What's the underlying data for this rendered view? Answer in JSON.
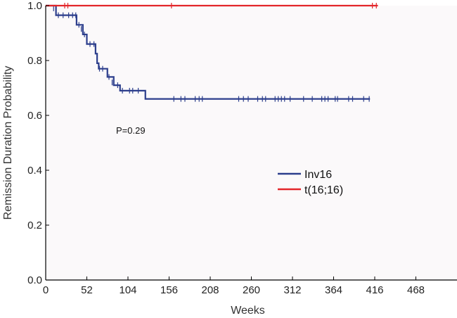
{
  "chart_data": {
    "type": "line",
    "subtype": "kaplan-meier",
    "xlabel": "Weeks",
    "ylabel": "Remission Duration Probability",
    "xlim": [
      0,
      520
    ],
    "ylim": [
      0,
      1.0
    ],
    "xticks": [
      0,
      52,
      104,
      156,
      208,
      260,
      312,
      364,
      416,
      468
    ],
    "yticks": [
      0.0,
      0.2,
      0.4,
      0.6,
      0.8,
      1.0
    ],
    "xtick_labels": [
      "0",
      "52",
      "104",
      "156",
      "208",
      "260",
      "312",
      "364",
      "416",
      "468"
    ],
    "ytick_labels": [
      "0.0",
      "0.2",
      "0.4",
      "0.6",
      "0.8",
      "1.0"
    ],
    "grid": false,
    "background": "#fbf9fa",
    "legend_position": "right-middle",
    "annotation": "P=0.29",
    "series": [
      {
        "name": "Inv16",
        "color": "#2c3e8c",
        "steps": [
          [
            0,
            1.0
          ],
          [
            13,
            0.965
          ],
          [
            39,
            0.93
          ],
          [
            47,
            0.895
          ],
          [
            52,
            0.86
          ],
          [
            63,
            0.825
          ],
          [
            65,
            0.79
          ],
          [
            67,
            0.77
          ],
          [
            78,
            0.74
          ],
          [
            86,
            0.71
          ],
          [
            94,
            0.69
          ],
          [
            126,
            0.66
          ],
          [
            410,
            0.66
          ]
        ],
        "censored": [
          [
            10,
            0.99
          ],
          [
            16,
            0.965
          ],
          [
            22,
            0.965
          ],
          [
            29,
            0.965
          ],
          [
            34,
            0.965
          ],
          [
            38,
            0.965
          ],
          [
            42,
            0.93
          ],
          [
            45,
            0.915
          ],
          [
            49,
            0.895
          ],
          [
            56,
            0.86
          ],
          [
            61,
            0.86
          ],
          [
            68,
            0.77
          ],
          [
            72,
            0.77
          ],
          [
            80,
            0.74
          ],
          [
            84,
            0.72
          ],
          [
            91,
            0.71
          ],
          [
            97,
            0.69
          ],
          [
            106,
            0.69
          ],
          [
            110,
            0.69
          ],
          [
            117,
            0.69
          ],
          [
            162,
            0.66
          ],
          [
            171,
            0.66
          ],
          [
            176,
            0.66
          ],
          [
            189,
            0.66
          ],
          [
            194,
            0.66
          ],
          [
            198,
            0.66
          ],
          [
            244,
            0.66
          ],
          [
            250,
            0.66
          ],
          [
            256,
            0.66
          ],
          [
            268,
            0.66
          ],
          [
            274,
            0.66
          ],
          [
            278,
            0.66
          ],
          [
            290,
            0.66
          ],
          [
            294,
            0.66
          ],
          [
            298,
            0.66
          ],
          [
            302,
            0.66
          ],
          [
            309,
            0.66
          ],
          [
            326,
            0.66
          ],
          [
            337,
            0.66
          ],
          [
            349,
            0.66
          ],
          [
            353,
            0.66
          ],
          [
            357,
            0.66
          ],
          [
            366,
            0.66
          ],
          [
            369,
            0.66
          ],
          [
            383,
            0.66
          ],
          [
            388,
            0.66
          ],
          [
            402,
            0.66
          ],
          [
            409,
            0.66
          ]
        ]
      },
      {
        "name": "t(16;16)",
        "color": "#e3262a",
        "steps": [
          [
            0,
            1.0
          ],
          [
            420,
            1.0
          ]
        ],
        "censored": [
          [
            24,
            1.0
          ],
          [
            28,
            1.0
          ],
          [
            159,
            1.0
          ],
          [
            413,
            1.0
          ],
          [
            418,
            1.0
          ]
        ]
      }
    ]
  }
}
